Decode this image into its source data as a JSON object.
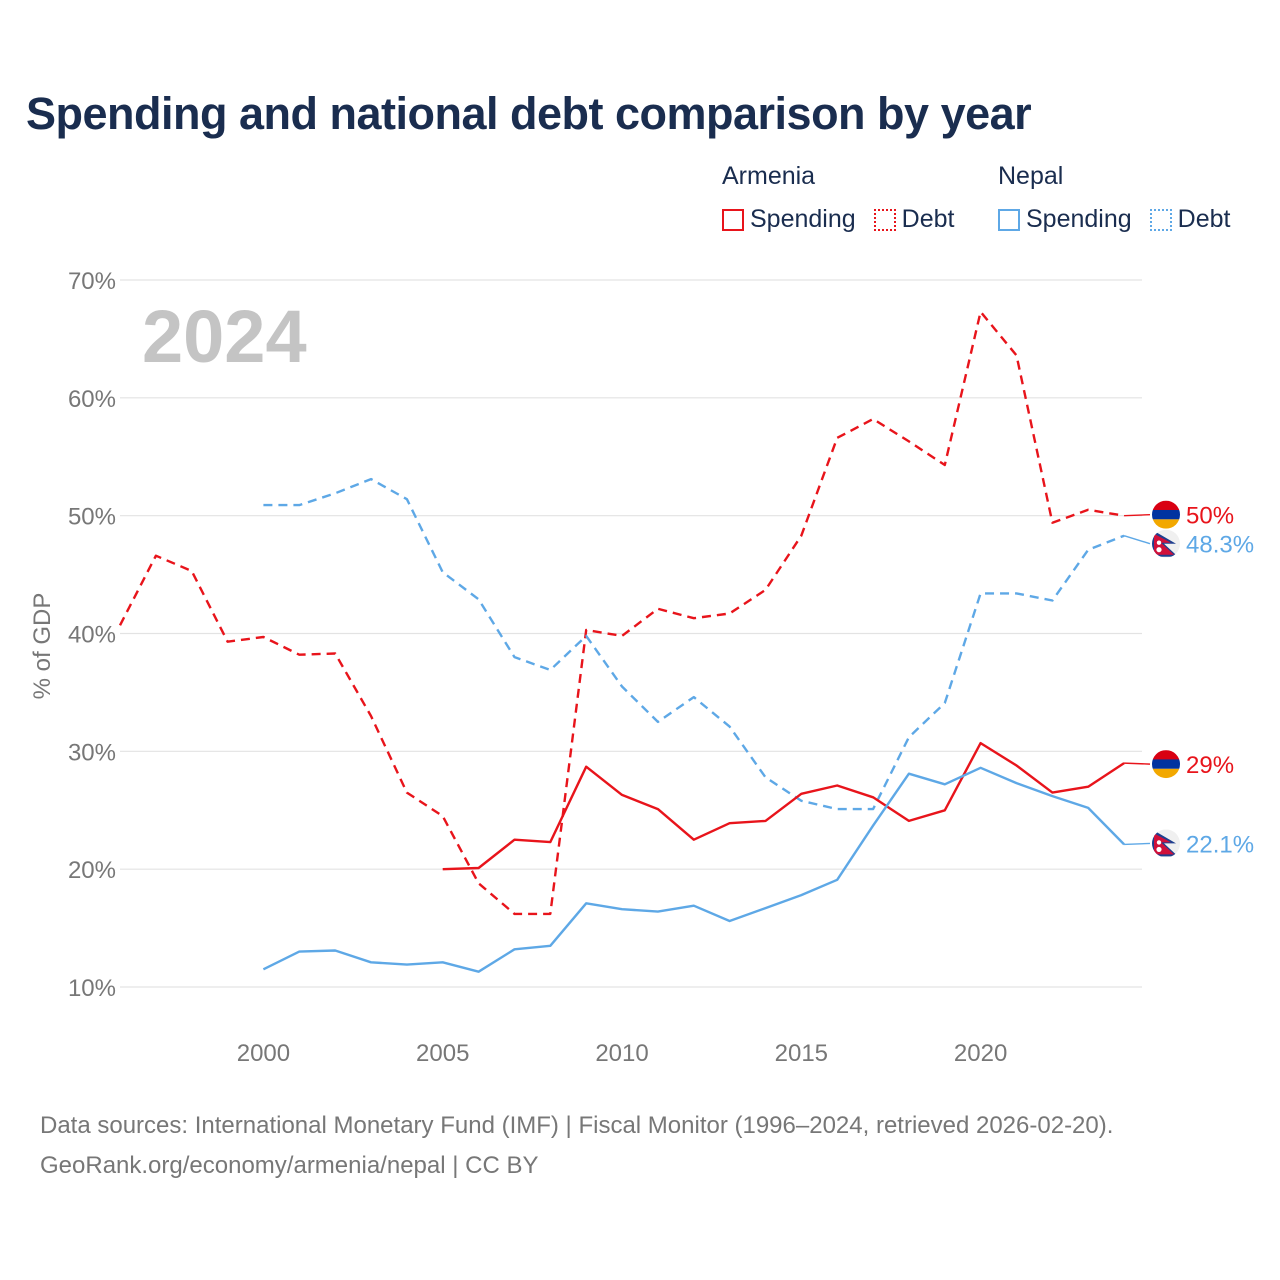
{
  "title": "Spending and national debt comparison by year",
  "legend": {
    "groups": [
      {
        "country": "Armenia",
        "items": [
          {
            "label": "Spending",
            "style": "solid"
          },
          {
            "label": "Debt",
            "style": "dotted"
          }
        ],
        "color": "#e8141b"
      },
      {
        "country": "Nepal",
        "items": [
          {
            "label": "Spending",
            "style": "solid"
          },
          {
            "label": "Debt",
            "style": "dotted"
          }
        ],
        "color": "#5ea8e6"
      }
    ]
  },
  "year_label": "2024",
  "sources": {
    "line1": "Data sources: International Monetary Fund (IMF) | Fiscal Monitor (1996–2024, retrieved 2026-02-20).",
    "line2": "GeoRank.org/economy/armenia/nepal | CC BY"
  },
  "chart_data": {
    "type": "line",
    "title": "Spending and national debt comparison by year",
    "ylabel": "% of GDP",
    "xlabel": "",
    "xlim": [
      1996,
      2024.5
    ],
    "ylim": [
      8,
      72
    ],
    "xticks": [
      2000,
      2005,
      2010,
      2015,
      2020
    ],
    "xtick_labels": [
      "2000",
      "2005",
      "2010",
      "2015",
      "2020"
    ],
    "yticks": [
      10,
      20,
      30,
      40,
      50,
      60,
      70
    ],
    "ytick_labels": [
      "10%",
      "20%",
      "30%",
      "40%",
      "50%",
      "60%",
      "70%"
    ],
    "grid": true,
    "series": [
      {
        "name": "Armenia Debt",
        "country": "Armenia",
        "color": "#e8141b",
        "dash": true,
        "x": [
          1996,
          1997,
          1998,
          1999,
          2000,
          2001,
          2002,
          2003,
          2004,
          2005,
          2006,
          2007,
          2008,
          2009,
          2010,
          2011,
          2012,
          2013,
          2014,
          2015,
          2016,
          2017,
          2018,
          2019,
          2020,
          2021,
          2022,
          2023,
          2024
        ],
        "values": [
          40.7,
          46.6,
          45.3,
          39.3,
          39.7,
          38.2,
          38.3,
          33.0,
          26.5,
          24.5,
          18.8,
          16.2,
          16.2,
          40.3,
          39.8,
          42.1,
          41.3,
          41.7,
          43.7,
          48.3,
          56.6,
          58.2,
          56.3,
          54.3,
          67.3,
          63.6,
          49.4,
          50.5,
          50.0
        ],
        "end_label": "50%"
      },
      {
        "name": "Nepal Debt",
        "country": "Nepal",
        "color": "#5ea8e6",
        "dash": true,
        "x": [
          2000,
          2001,
          2002,
          2003,
          2004,
          2005,
          2006,
          2007,
          2008,
          2009,
          2010,
          2011,
          2012,
          2013,
          2014,
          2015,
          2016,
          2017,
          2018,
          2019,
          2020,
          2021,
          2022,
          2023,
          2024
        ],
        "values": [
          50.9,
          50.9,
          51.9,
          53.1,
          51.4,
          45.2,
          42.9,
          38.0,
          36.9,
          39.8,
          35.5,
          32.5,
          34.6,
          32.1,
          27.8,
          25.8,
          25.1,
          25.1,
          31.2,
          34.1,
          43.4,
          43.4,
          42.8,
          47.1,
          48.3
        ],
        "end_label": "48.3%"
      },
      {
        "name": "Armenia Spending",
        "country": "Armenia",
        "color": "#e8141b",
        "dash": false,
        "x": [
          2005,
          2006,
          2007,
          2008,
          2009,
          2010,
          2011,
          2012,
          2013,
          2014,
          2015,
          2016,
          2017,
          2018,
          2019,
          2020,
          2021,
          2022,
          2023,
          2024
        ],
        "values": [
          20.0,
          20.1,
          22.5,
          22.3,
          28.7,
          26.3,
          25.1,
          22.5,
          23.9,
          24.1,
          26.4,
          27.1,
          26.1,
          24.1,
          25.0,
          30.7,
          28.8,
          26.5,
          27.0,
          29.0
        ],
        "end_label": "29%"
      },
      {
        "name": "Nepal Spending",
        "country": "Nepal",
        "color": "#5ea8e6",
        "dash": false,
        "x": [
          2000,
          2001,
          2002,
          2003,
          2004,
          2005,
          2006,
          2007,
          2008,
          2009,
          2010,
          2011,
          2012,
          2013,
          2014,
          2015,
          2016,
          2017,
          2018,
          2019,
          2020,
          2021,
          2022,
          2023,
          2024
        ],
        "values": [
          11.5,
          13.0,
          13.1,
          12.1,
          11.9,
          12.1,
          11.3,
          13.2,
          13.5,
          17.1,
          16.6,
          16.4,
          16.9,
          15.6,
          16.7,
          17.8,
          19.1,
          23.7,
          28.1,
          27.2,
          28.6,
          27.3,
          26.2,
          25.2,
          22.1
        ],
        "end_label": "22.1%"
      }
    ]
  }
}
